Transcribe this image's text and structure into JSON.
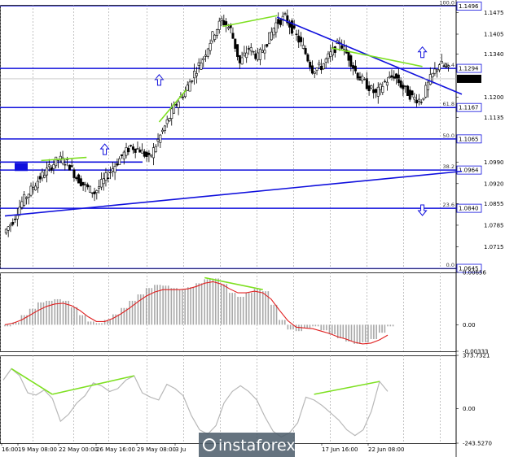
{
  "chart_data": [
    {
      "type": "candlestick",
      "title": "",
      "y_range": [
        1.0645,
        1.15
      ],
      "y_tick_labels": [
        "1.1475",
        "1.1405",
        "1.1340",
        "1.1200",
        "1.1135",
        "1.0990",
        "1.0920",
        "1.0855",
        "1.0785",
        "1.0715"
      ],
      "fibonacci_levels": [
        {
          "label": "100.0",
          "price": 1.1496
        },
        {
          "label": "76.4",
          "price": 1.1294
        },
        {
          "label": "61.8",
          "price": 1.1167
        },
        {
          "label": "50.0",
          "price": 1.1065
        },
        {
          "label": "38.2",
          "price": 1.0964
        },
        {
          "label": "23.6",
          "price": 1.084
        },
        {
          "label": "0.0",
          "price": 1.0645
        }
      ],
      "current_price": 1.126,
      "price_series": [
        1.076,
        1.08,
        1.086,
        1.09,
        1.094,
        1.097,
        1.1,
        1.099,
        1.094,
        1.091,
        1.089,
        1.093,
        1.097,
        1.101,
        1.104,
        1.103,
        1.1,
        1.106,
        1.112,
        1.118,
        1.122,
        1.128,
        1.133,
        1.14,
        1.145,
        1.142,
        1.131,
        1.136,
        1.133,
        1.138,
        1.144,
        1.146,
        1.141,
        1.136,
        1.129,
        1.13,
        1.134,
        1.138,
        1.133,
        1.127,
        1.124,
        1.121,
        1.125,
        1.127,
        1.123,
        1.12,
        1.119,
        1.126,
        1.131,
        1.129
      ],
      "trend_lines": [
        {
          "color": "#1010dd",
          "from": [
            0,
            1.0815
          ],
          "to": [
            49,
            1.096
          ]
        },
        {
          "color": "#1010dd",
          "from": [
            30,
            1.146
          ],
          "to": [
            49,
            1.121
          ]
        }
      ],
      "divergence_lines": [
        {
          "from": [
            4,
            1.0995
          ],
          "to": [
            9,
            1.1005
          ]
        },
        {
          "from": [
            17,
            1.112
          ],
          "to": [
            20,
            1.1225
          ]
        },
        {
          "from": [
            24,
            1.143
          ],
          "to": [
            30,
            1.1465
          ]
        },
        {
          "from": [
            36,
            1.136
          ],
          "to": [
            46,
            1.13
          ]
        }
      ],
      "arrows": [
        {
          "direction": "up",
          "at": [
            11,
            1.103
          ]
        },
        {
          "direction": "up",
          "at": [
            17,
            1.1255
          ]
        },
        {
          "direction": "up",
          "at": [
            46,
            1.1345
          ]
        },
        {
          "direction": "down",
          "at": [
            46,
            1.0835
          ]
        }
      ]
    },
    {
      "type": "bar",
      "title": "",
      "y_tick_labels": [
        "0.00656",
        "0.00",
        "-0.00333"
      ],
      "y_range": [
        -0.00333,
        0.00656
      ],
      "histogram": [
        -0.0002,
        0.0003,
        0.0012,
        0.002,
        0.0028,
        0.003,
        0.0032,
        0.003,
        0.0022,
        0.0012,
        0.0004,
        0.0002,
        0.0006,
        0.0013,
        0.0021,
        0.003,
        0.0038,
        0.0046,
        0.005,
        0.0049,
        0.0046,
        0.0044,
        0.0047,
        0.0052,
        0.0057,
        0.0058,
        0.0051,
        0.004,
        0.0035,
        0.004,
        0.0045,
        0.0042,
        0.0025,
        0.0006,
        -0.0006,
        -0.0008,
        -0.0004,
        -0.0002,
        -0.0007,
        -0.0012,
        -0.0017,
        -0.0021,
        -0.0024,
        -0.0022,
        -0.0018,
        -0.001,
        -0.0002
      ],
      "signal": [
        0.0,
        0.0002,
        0.0006,
        0.0012,
        0.0018,
        0.0023,
        0.0026,
        0.0027,
        0.0024,
        0.0018,
        0.001,
        0.0004,
        0.0004,
        0.0008,
        0.0014,
        0.0021,
        0.0029,
        0.0036,
        0.0041,
        0.0044,
        0.0044,
        0.0044,
        0.0045,
        0.0048,
        0.0052,
        0.0054,
        0.0051,
        0.0045,
        0.004,
        0.004,
        0.0042,
        0.004,
        0.0032,
        0.0018,
        0.0005,
        -0.0003,
        -0.0004,
        -0.0005,
        -0.0008,
        -0.0011,
        -0.0015,
        -0.0018,
        -0.0022,
        -0.0024,
        -0.0023,
        -0.0019,
        -0.0013
      ],
      "divergence_lines": [
        {
          "from": [
            24,
            0.0059
          ],
          "to": [
            31,
            0.0044
          ]
        }
      ]
    },
    {
      "type": "line",
      "title": "",
      "y_tick_labels": [
        "373.7321",
        "0.00",
        "-243.5270"
      ],
      "y_range": [
        -243.527,
        373.7321
      ],
      "series": [
        {
          "values": [
            200,
            280,
            230,
            110,
            95,
            130,
            70,
            -90,
            -40,
            40,
            90,
            180,
            160,
            120,
            140,
            200,
            230,
            110,
            80,
            60,
            170,
            140,
            90,
            -50,
            -150,
            -180,
            -120,
            40,
            120,
            160,
            120,
            60,
            -60,
            -160,
            -200,
            -170,
            -100,
            80,
            60,
            20,
            -30,
            -80,
            -150,
            -190,
            -150,
            -20,
            190,
            120
          ]
        }
      ],
      "divergence_lines": [
        {
          "from": [
            1,
            280
          ],
          "to": [
            6,
            100
          ]
        },
        {
          "from": [
            6,
            100
          ],
          "to": [
            16,
            230
          ]
        },
        {
          "from": [
            38,
            100
          ],
          "to": [
            46,
            190
          ]
        }
      ]
    }
  ],
  "x_labels": [
    "16:00",
    "19 May 08:00",
    "22 May 00:00",
    "26 May 16:00",
    "29 May 08:00",
    "3 Ju",
    "17 Jun 16:00",
    "22 Jun 08:00"
  ],
  "watermark": "instaforex"
}
